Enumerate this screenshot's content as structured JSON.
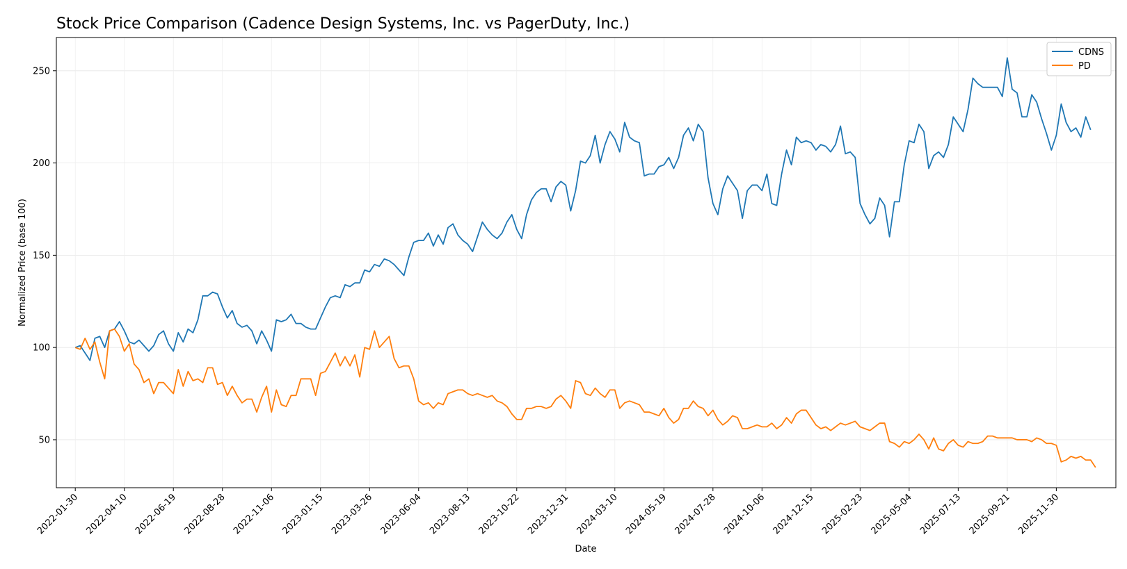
{
  "chart_data": {
    "type": "line",
    "title": "Stock Price Comparison (Cadence Design Systems, Inc. vs PagerDuty, Inc.)",
    "xlabel": "Date",
    "ylabel": "Normalized Price (base 100)",
    "ylim": [
      24,
      268
    ],
    "yticks": [
      50,
      100,
      150,
      200,
      250
    ],
    "grid": true,
    "legend_position": "top-right",
    "x_range_days": [
      -27,
      1485
    ],
    "x_ticks": [
      {
        "label": "2022-01-30",
        "day": 0
      },
      {
        "label": "2022-04-10",
        "day": 70
      },
      {
        "label": "2022-06-19",
        "day": 140
      },
      {
        "label": "2022-08-28",
        "day": 210
      },
      {
        "label": "2022-11-06",
        "day": 280
      },
      {
        "label": "2023-01-15",
        "day": 350
      },
      {
        "label": "2023-03-26",
        "day": 420
      },
      {
        "label": "2023-06-04",
        "day": 490
      },
      {
        "label": "2023-08-13",
        "day": 560
      },
      {
        "label": "2023-10-22",
        "day": 630
      },
      {
        "label": "2023-12-31",
        "day": 700
      },
      {
        "label": "2024-03-10",
        "day": 770
      },
      {
        "label": "2024-05-19",
        "day": 840
      },
      {
        "label": "2024-07-28",
        "day": 910
      },
      {
        "label": "2024-10-06",
        "day": 980
      },
      {
        "label": "2024-12-15",
        "day": 1050
      },
      {
        "label": "2025-02-23",
        "day": 1120
      },
      {
        "label": "2025-05-04",
        "day": 1190
      },
      {
        "label": "2025-07-13",
        "day": 1260
      },
      {
        "label": "2025-09-21",
        "day": 1330
      },
      {
        "label": "2025-11-30",
        "day": 1400
      }
    ],
    "x_step_days": 7,
    "series": [
      {
        "name": "CDNS",
        "color": "#1f77b4",
        "values": [
          100,
          101,
          97,
          93,
          105,
          106,
          100,
          109,
          110,
          114,
          109,
          103,
          102,
          104,
          101,
          98,
          101,
          107,
          109,
          102,
          98,
          108,
          103,
          110,
          108,
          115,
          128,
          128,
          130,
          129,
          122,
          116,
          120,
          113,
          111,
          112,
          109,
          102,
          109,
          104,
          98,
          115,
          114,
          115,
          118,
          113,
          113,
          111,
          110,
          110,
          116,
          122,
          127,
          128,
          127,
          134,
          133,
          135,
          135,
          142,
          141,
          145,
          144,
          148,
          147,
          145,
          142,
          139,
          149,
          157,
          158,
          158,
          162,
          155,
          161,
          156,
          165,
          167,
          161,
          158,
          156,
          152,
          160,
          168,
          164,
          161,
          159,
          162,
          168,
          172,
          164,
          159,
          172,
          180,
          184,
          186,
          186,
          179,
          187,
          190,
          188,
          174,
          185,
          201,
          200,
          204,
          215,
          200,
          210,
          217,
          213,
          206,
          222,
          214,
          212,
          211,
          193,
          194,
          194,
          198,
          199,
          203,
          197,
          203,
          215,
          219,
          212,
          221,
          217,
          192,
          178,
          172,
          186,
          193,
          189,
          185,
          170,
          185,
          188,
          188,
          185,
          194,
          178,
          177,
          194,
          207,
          199,
          214,
          211,
          212,
          211,
          207,
          210,
          209,
          206,
          210,
          220,
          205,
          206,
          203,
          178,
          172,
          167,
          170,
          181,
          177,
          160,
          179,
          179,
          199,
          212,
          211,
          221,
          217,
          197,
          204,
          206,
          203,
          210,
          225,
          221,
          217,
          229,
          246,
          243,
          241,
          241,
          241,
          241,
          236,
          257,
          240,
          238,
          225,
          225,
          237,
          233,
          224,
          216,
          207,
          215,
          232,
          222,
          217,
          219,
          214,
          225,
          218
        ]
      },
      {
        "name": "PD",
        "color": "#ff7f0e",
        "values": [
          100,
          99,
          105,
          99,
          103,
          92,
          83,
          109,
          110,
          106,
          98,
          102,
          91,
          88,
          81,
          83,
          75,
          81,
          81,
          78,
          75,
          88,
          79,
          87,
          82,
          83,
          81,
          89,
          89,
          80,
          81,
          74,
          79,
          74,
          70,
          72,
          72,
          65,
          73,
          79,
          65,
          77,
          69,
          68,
          74,
          74,
          83,
          83,
          83,
          74,
          86,
          87,
          92,
          97,
          90,
          95,
          90,
          96,
          84,
          100,
          99,
          109,
          100,
          103,
          106,
          94,
          89,
          90,
          90,
          83,
          71,
          69,
          70,
          67,
          70,
          69,
          75,
          76,
          77,
          77,
          75,
          74,
          75,
          74,
          73,
          74,
          71,
          70,
          68,
          64,
          61,
          61,
          67,
          67,
          68,
          68,
          67,
          68,
          72,
          74,
          71,
          67,
          82,
          81,
          75,
          74,
          78,
          75,
          73,
          77,
          77,
          67,
          70,
          71,
          70,
          69,
          65,
          65,
          64,
          63,
          67,
          62,
          59,
          61,
          67,
          67,
          71,
          68,
          67,
          63,
          66,
          61,
          58,
          60,
          63,
          62,
          56,
          56,
          57,
          58,
          57,
          57,
          59,
          56,
          58,
          62,
          59,
          64,
          66,
          66,
          62,
          58,
          56,
          57,
          55,
          57,
          59,
          58,
          59,
          60,
          57,
          56,
          55,
          57,
          59,
          59,
          49,
          48,
          46,
          49,
          48,
          50,
          53,
          50,
          45,
          51,
          45,
          44,
          48,
          50,
          47,
          46,
          49,
          48,
          48,
          49,
          52,
          52,
          51,
          51,
          51,
          51,
          50,
          50,
          50,
          49,
          51,
          50,
          48,
          48,
          47,
          38,
          39,
          41,
          40,
          41,
          39,
          39,
          35
        ]
      }
    ]
  }
}
